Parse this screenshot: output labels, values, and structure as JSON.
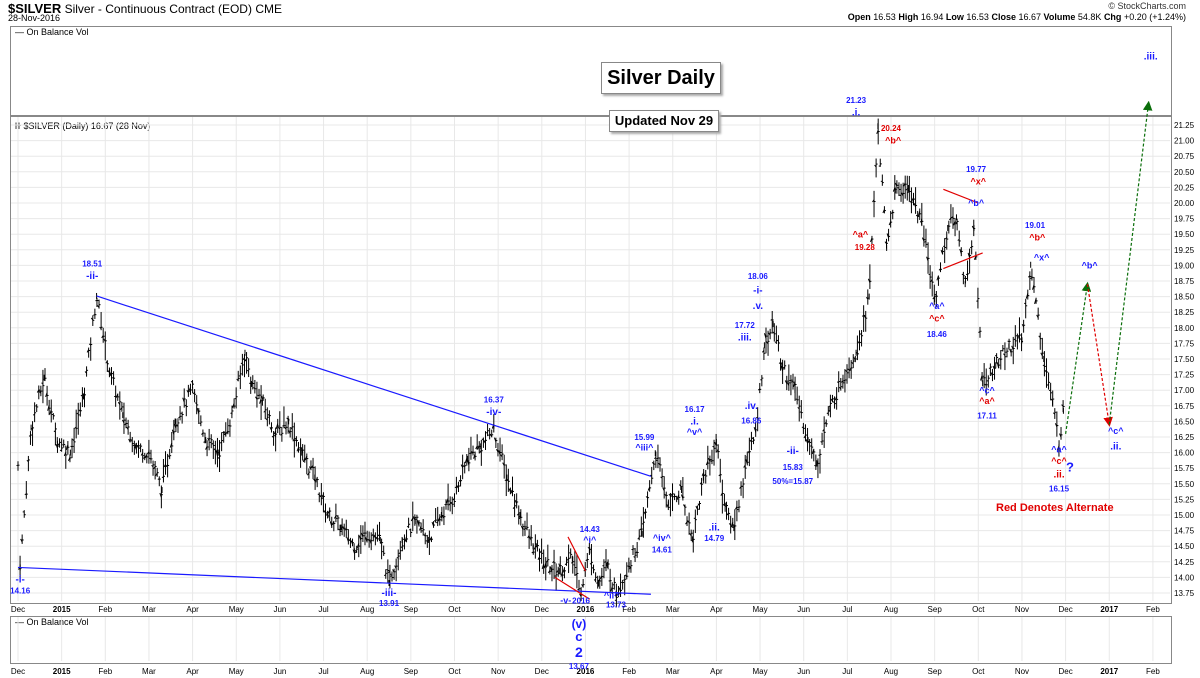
{
  "header": {
    "symbol": "$SILVER",
    "description": "Silver - Continuous Contract (EOD)",
    "exchange": "CME",
    "date": "28-Nov-2016",
    "brand": "© StockCharts.com",
    "quote": {
      "open_label": "Open",
      "open": "16.53",
      "high_label": "High",
      "high": "16.94",
      "low_label": "Low",
      "low": "16.53",
      "close_label": "Close",
      "close": "16.67",
      "volume_label": "Volume",
      "volume": "54.8K",
      "chg_label": "Chg",
      "chg": "+0.20 (+1.24%)"
    }
  },
  "top_indicator_label": "On Balance Vol",
  "bottom_indicator_label": "On Balance Vol",
  "price_label": "$SILVER (Daily) 16.67 (28 Nov)",
  "title_box": "Silver Daily",
  "update_box": "Updated Nov 29",
  "alternate_note": "Red Denotes Alternate",
  "colors": {
    "primary": "#1a1aff",
    "alternate": "#e00000",
    "bars": "#000000",
    "green_arrow": "#0a6e0a",
    "red_arrow": "#e00000"
  },
  "chart_data": {
    "type": "ohlc",
    "title": "Silver Daily",
    "ylim": [
      13.5,
      21.5
    ],
    "y_ticks": [
      "13.75",
      "14.00",
      "14.25",
      "14.50",
      "14.75",
      "15.00",
      "15.25",
      "15.50",
      "15.75",
      "16.00",
      "16.25",
      "16.50",
      "16.75",
      "17.00",
      "17.25",
      "17.50",
      "17.75",
      "18.00",
      "18.25",
      "18.50",
      "18.75",
      "19.00",
      "19.25",
      "19.50",
      "19.75",
      "20.00",
      "20.25",
      "20.50",
      "20.75",
      "21.00",
      "21.25"
    ],
    "x_ticks": [
      {
        "label": "Dec",
        "m": 0,
        "bold": false
      },
      {
        "label": "2015",
        "m": 1,
        "bold": true
      },
      {
        "label": "Feb",
        "m": 2,
        "bold": false
      },
      {
        "label": "Mar",
        "m": 3,
        "bold": false
      },
      {
        "label": "Apr",
        "m": 4,
        "bold": false
      },
      {
        "label": "May",
        "m": 5,
        "bold": false
      },
      {
        "label": "Jun",
        "m": 6,
        "bold": false
      },
      {
        "label": "Jul",
        "m": 7,
        "bold": false
      },
      {
        "label": "Aug",
        "m": 8,
        "bold": false
      },
      {
        "label": "Sep",
        "m": 9,
        "bold": false
      },
      {
        "label": "Oct",
        "m": 10,
        "bold": false
      },
      {
        "label": "Nov",
        "m": 11,
        "bold": false
      },
      {
        "label": "Dec",
        "m": 12,
        "bold": false
      },
      {
        "label": "2016",
        "m": 13,
        "bold": true
      },
      {
        "label": "Feb",
        "m": 14,
        "bold": false
      },
      {
        "label": "Mar",
        "m": 15,
        "bold": false
      },
      {
        "label": "Apr",
        "m": 16,
        "bold": false
      },
      {
        "label": "May",
        "m": 17,
        "bold": false
      },
      {
        "label": "Jun",
        "m": 18,
        "bold": false
      },
      {
        "label": "Jul",
        "m": 19,
        "bold": false
      },
      {
        "label": "Aug",
        "m": 20,
        "bold": false
      },
      {
        "label": "Sep",
        "m": 21,
        "bold": false
      },
      {
        "label": "Oct",
        "m": 22,
        "bold": false
      },
      {
        "label": "Nov",
        "m": 23,
        "bold": false
      },
      {
        "label": "Dec",
        "m": 24,
        "bold": false
      },
      {
        "label": "2017",
        "m": 25,
        "bold": true
      },
      {
        "label": "Feb",
        "m": 26,
        "bold": false
      }
    ],
    "price_path": [
      [
        0.0,
        15.8
      ],
      [
        0.05,
        14.16
      ],
      [
        0.3,
        16.4
      ],
      [
        0.6,
        17.2
      ],
      [
        0.9,
        16.2
      ],
      [
        1.2,
        16.0
      ],
      [
        1.5,
        16.9
      ],
      [
        1.8,
        18.51
      ],
      [
        2.1,
        17.3
      ],
      [
        2.4,
        16.6
      ],
      [
        2.7,
        16.1
      ],
      [
        3.0,
        16.0
      ],
      [
        3.3,
        15.4
      ],
      [
        3.6,
        16.5
      ],
      [
        4.0,
        17.0
      ],
      [
        4.3,
        16.2
      ],
      [
        4.6,
        16.0
      ],
      [
        4.9,
        16.6
      ],
      [
        5.2,
        17.6
      ],
      [
        5.35,
        17.1
      ],
      [
        5.6,
        16.8
      ],
      [
        5.9,
        16.3
      ],
      [
        6.2,
        16.5
      ],
      [
        6.5,
        16.0
      ],
      [
        6.8,
        15.6
      ],
      [
        7.1,
        15.0
      ],
      [
        7.4,
        14.8
      ],
      [
        7.7,
        14.5
      ],
      [
        8.0,
        14.7
      ],
      [
        8.3,
        14.6
      ],
      [
        8.5,
        13.91
      ],
      [
        8.8,
        14.6
      ],
      [
        9.1,
        14.9
      ],
      [
        9.4,
        14.6
      ],
      [
        9.7,
        15.0
      ],
      [
        10.0,
        15.3
      ],
      [
        10.3,
        15.9
      ],
      [
        10.6,
        16.1
      ],
      [
        10.9,
        16.37
      ],
      [
        11.2,
        15.6
      ],
      [
        11.5,
        15.0
      ],
      [
        11.8,
        14.5
      ],
      [
        12.1,
        14.2
      ],
      [
        12.4,
        14.1
      ],
      [
        12.7,
        14.3
      ],
      [
        12.9,
        13.8
      ],
      [
        13.1,
        14.43
      ],
      [
        13.3,
        13.9
      ],
      [
        13.5,
        14.2
      ],
      [
        13.7,
        13.73
      ],
      [
        14.0,
        14.2
      ],
      [
        14.3,
        14.7
      ],
      [
        14.6,
        15.99
      ],
      [
        14.9,
        15.2
      ],
      [
        15.2,
        15.4
      ],
      [
        15.45,
        14.61
      ],
      [
        15.7,
        15.6
      ],
      [
        16.0,
        16.17
      ],
      [
        16.2,
        15.1
      ],
      [
        16.4,
        14.79
      ],
      [
        16.7,
        15.9
      ],
      [
        16.9,
        16.3
      ],
      [
        17.1,
        17.72
      ],
      [
        17.3,
        18.06
      ],
      [
        17.5,
        17.4
      ],
      [
        17.8,
        17.0
      ],
      [
        18.1,
        16.2
      ],
      [
        18.3,
        15.83
      ],
      [
        18.6,
        16.7
      ],
      [
        18.9,
        17.2
      ],
      [
        19.2,
        17.6
      ],
      [
        19.5,
        18.5
      ],
      [
        19.7,
        21.23
      ],
      [
        19.9,
        19.28
      ],
      [
        20.1,
        20.2
      ],
      [
        20.4,
        20.24
      ],
      [
        20.7,
        19.7
      ],
      [
        21.0,
        18.46
      ],
      [
        21.3,
        19.6
      ],
      [
        21.5,
        19.77
      ],
      [
        21.7,
        18.7
      ],
      [
        21.9,
        19.6
      ],
      [
        22.1,
        17.11
      ],
      [
        22.4,
        17.4
      ],
      [
        22.7,
        17.7
      ],
      [
        23.0,
        17.8
      ],
      [
        23.2,
        19.01
      ],
      [
        23.5,
        17.5
      ],
      [
        23.7,
        16.8
      ],
      [
        23.85,
        16.15
      ],
      [
        23.95,
        16.67
      ]
    ],
    "lines": [
      {
        "name": "upper-trendline",
        "color": "#1a1aff",
        "from": [
          1.8,
          18.51
        ],
        "to": [
          14.5,
          15.62
        ]
      },
      {
        "name": "lower-trendline",
        "color": "#1a1aff",
        "from": [
          0.0,
          14.16
        ],
        "to": [
          14.5,
          13.73
        ]
      },
      {
        "name": "red-wedge-top",
        "color": "#e00000",
        "from": [
          21.2,
          20.22
        ],
        "to": [
          22.0,
          20.0
        ]
      },
      {
        "name": "red-wedge-bottom",
        "color": "#e00000",
        "from": [
          21.2,
          18.95
        ],
        "to": [
          22.1,
          19.2
        ]
      },
      {
        "name": "red-low-line-a",
        "color": "#e00000",
        "from": [
          12.6,
          14.65
        ],
        "to": [
          13.0,
          14.1
        ]
      },
      {
        "name": "red-low-line-b",
        "color": "#e00000",
        "from": [
          12.3,
          14.0
        ],
        "to": [
          13.1,
          13.65
        ]
      }
    ],
    "projections": [
      {
        "name": "green-proj-1",
        "color": "#0a6e0a",
        "from": [
          24.0,
          16.3
        ],
        "to": [
          24.5,
          18.7
        ]
      },
      {
        "name": "red-proj",
        "color": "#e00000",
        "from": [
          24.5,
          18.7
        ],
        "to": [
          25.0,
          16.45
        ]
      },
      {
        "name": "green-proj-2",
        "color": "#0a6e0a",
        "from": [
          25.0,
          16.45
        ],
        "to": [
          25.9,
          21.6
        ]
      }
    ],
    "labels": [
      {
        "t": "18.51",
        "x": 1.7,
        "y": 18.98,
        "c": "p",
        "s": 8
      },
      {
        "t": "-ii-",
        "x": 1.7,
        "y": 18.78,
        "c": "p",
        "s": 10
      },
      {
        "t": "-i-",
        "x": 0.05,
        "y": 13.92,
        "c": "p",
        "s": 10
      },
      {
        "t": "14.16",
        "x": 0.05,
        "y": 13.74,
        "c": "p",
        "s": 8
      },
      {
        "t": "-iii-",
        "x": 8.5,
        "y": 13.7,
        "c": "p",
        "s": 10
      },
      {
        "t": "13.91",
        "x": 8.5,
        "y": 13.54,
        "c": "p",
        "s": 8
      },
      {
        "t": "16.37",
        "x": 10.9,
        "y": 16.8,
        "c": "p",
        "s": 8
      },
      {
        "t": "-iv-",
        "x": 10.9,
        "y": 16.6,
        "c": "p",
        "s": 10
      },
      {
        "t": "14.43",
        "x": 13.1,
        "y": 14.73,
        "c": "p",
        "s": 8
      },
      {
        "t": "^i^",
        "x": 13.1,
        "y": 14.55,
        "c": "p",
        "s": 9
      },
      {
        "t": "-v-",
        "x": 12.55,
        "y": 13.58,
        "c": "p",
        "s": 9
      },
      {
        "t": "2016",
        "x": 12.9,
        "y": 13.58,
        "c": "p",
        "s": 8
      },
      {
        "t": "^ii^",
        "x": 13.6,
        "y": 13.66,
        "c": "p",
        "s": 9
      },
      {
        "t": "13.73",
        "x": 13.7,
        "y": 13.52,
        "c": "p",
        "s": 8
      },
      {
        "t": "15.99",
        "x": 14.35,
        "y": 16.2,
        "c": "p",
        "s": 8
      },
      {
        "t": "^iii^",
        "x": 14.35,
        "y": 16.03,
        "c": "p",
        "s": 9
      },
      {
        "t": "^iv^",
        "x": 14.75,
        "y": 14.58,
        "c": "p",
        "s": 9
      },
      {
        "t": "14.61",
        "x": 14.75,
        "y": 14.4,
        "c": "p",
        "s": 8
      },
      {
        "t": "16.17",
        "x": 15.5,
        "y": 16.65,
        "c": "p",
        "s": 8
      },
      {
        "t": ".i.",
        "x": 15.5,
        "y": 16.45,
        "c": "p",
        "s": 10
      },
      {
        "t": "^v^",
        "x": 15.5,
        "y": 16.28,
        "c": "p",
        "s": 9
      },
      {
        "t": ".ii.",
        "x": 15.95,
        "y": 14.75,
        "c": "p",
        "s": 10
      },
      {
        "t": "14.79",
        "x": 15.95,
        "y": 14.58,
        "c": "p",
        "s": 8
      },
      {
        "t": "17.72",
        "x": 16.65,
        "y": 18.0,
        "c": "p",
        "s": 8
      },
      {
        "t": ".iii.",
        "x": 16.65,
        "y": 17.8,
        "c": "p",
        "s": 10
      },
      {
        "t": "18.06",
        "x": 16.95,
        "y": 18.78,
        "c": "p",
        "s": 8
      },
      {
        "t": "-i-",
        "x": 16.95,
        "y": 18.55,
        "c": "p",
        "s": 10
      },
      {
        "t": ".v.",
        "x": 16.95,
        "y": 18.3,
        "c": "p",
        "s": 10
      },
      {
        "t": ".iv.",
        "x": 16.8,
        "y": 16.7,
        "c": "p",
        "s": 10
      },
      {
        "t": "16.86",
        "x": 16.8,
        "y": 16.47,
        "c": "p",
        "s": 8
      },
      {
        "t": "-ii-",
        "x": 17.75,
        "y": 15.98,
        "c": "p",
        "s": 10
      },
      {
        "t": "15.83",
        "x": 17.75,
        "y": 15.72,
        "c": "p",
        "s": 8
      },
      {
        "t": "50%=15.87",
        "x": 17.75,
        "y": 15.5,
        "c": "p",
        "s": 8
      },
      {
        "t": "21.23",
        "x": 19.2,
        "y": 21.6,
        "c": "p",
        "s": 8
      },
      {
        "t": ".i.",
        "x": 19.2,
        "y": 21.4,
        "c": "p",
        "s": 10
      },
      {
        "t": "^a^",
        "x": 19.3,
        "y": 19.45,
        "c": "a",
        "s": 9
      },
      {
        "t": "19.28",
        "x": 19.4,
        "y": 19.25,
        "c": "a",
        "s": 8
      },
      {
        "t": "20.24",
        "x": 20.0,
        "y": 21.15,
        "c": "a",
        "s": 8
      },
      {
        "t": "^b^",
        "x": 20.05,
        "y": 20.95,
        "c": "a",
        "s": 9
      },
      {
        "t": "^a^",
        "x": 21.05,
        "y": 18.3,
        "c": "p",
        "s": 9
      },
      {
        "t": "^c^",
        "x": 21.05,
        "y": 18.1,
        "c": "a",
        "s": 9
      },
      {
        "t": "18.46",
        "x": 21.05,
        "y": 17.85,
        "c": "p",
        "s": 8
      },
      {
        "t": "19.77",
        "x": 21.95,
        "y": 20.5,
        "c": "p",
        "s": 8
      },
      {
        "t": "^x^",
        "x": 22.0,
        "y": 20.3,
        "c": "a",
        "s": 9
      },
      {
        "t": "^b^",
        "x": 21.95,
        "y": 19.95,
        "c": "p",
        "s": 9
      },
      {
        "t": "^c^",
        "x": 22.2,
        "y": 16.95,
        "c": "p",
        "s": 9
      },
      {
        "t": "^a^",
        "x": 22.2,
        "y": 16.78,
        "c": "a",
        "s": 9
      },
      {
        "t": "17.11",
        "x": 22.2,
        "y": 16.55,
        "c": "p",
        "s": 8
      },
      {
        "t": "19.01",
        "x": 23.3,
        "y": 19.6,
        "c": "p",
        "s": 8
      },
      {
        "t": "^b^",
        "x": 23.35,
        "y": 19.4,
        "c": "a",
        "s": 9
      },
      {
        "t": "^x^",
        "x": 23.45,
        "y": 19.08,
        "c": "p",
        "s": 9
      },
      {
        "t": "^a^",
        "x": 23.85,
        "y": 16.0,
        "c": "p",
        "s": 9
      },
      {
        "t": "^c^",
        "x": 23.85,
        "y": 15.82,
        "c": "a",
        "s": 9
      },
      {
        "t": "?",
        "x": 24.1,
        "y": 15.7,
        "c": "p",
        "s": 13
      },
      {
        "t": ".ii.",
        "x": 23.85,
        "y": 15.6,
        "c": "a",
        "s": 10
      },
      {
        "t": "16.15",
        "x": 23.85,
        "y": 15.38,
        "c": "p",
        "s": 8
      },
      {
        "t": "^b^",
        "x": 24.55,
        "y": 18.95,
        "c": "p",
        "s": 9
      },
      {
        "t": "^c^",
        "x": 25.15,
        "y": 16.3,
        "c": "p",
        "s": 9
      },
      {
        "t": ".ii.",
        "x": 25.15,
        "y": 16.05,
        "c": "p",
        "s": 10
      },
      {
        "t": ".iii.",
        "x": 25.95,
        "y": 22.3,
        "c": "p",
        "s": 10
      }
    ],
    "wave_labels": [
      {
        "t": "(v)",
        "s": 12
      },
      {
        "t": "c",
        "s": 13
      },
      {
        "t": "2",
        "s": 14
      },
      {
        "t": "13.67",
        "s": 8
      }
    ]
  }
}
